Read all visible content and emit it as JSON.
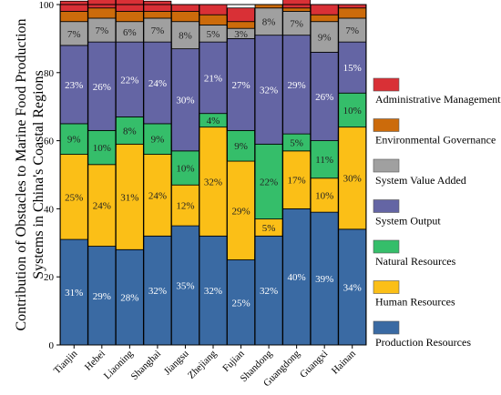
{
  "chart_data": {
    "type": "bar",
    "stacked": true,
    "ylabel": "Contribution of Obstacles to Marine Food Production Systems in China's Coastal Regions",
    "ylim": [
      0,
      100
    ],
    "yticks": [
      0,
      20,
      40,
      60,
      80,
      100
    ],
    "categories": [
      "Tianjin",
      "Hebei",
      "Liaoning",
      "Shanghai",
      "Jiangsu",
      "Zhejiang",
      "Fujian",
      "Shandong",
      "Guangdong",
      "Guangxi",
      "Hainan"
    ],
    "series": [
      {
        "name": "Production Resources",
        "color": "#3a6aa3",
        "values": [
          31,
          29,
          28,
          32,
          35,
          32,
          25,
          32,
          40,
          39,
          34
        ],
        "labels": [
          "31%",
          "29%",
          "28%",
          "32%",
          "35%",
          "32%",
          "25%",
          "32%",
          "40%",
          "39%",
          "34%"
        ]
      },
      {
        "name": "Human Resources",
        "color": "#fbbf17",
        "values": [
          25,
          24,
          31,
          24,
          12,
          32,
          29,
          5,
          17,
          10,
          30
        ],
        "labels": [
          "25%",
          "24%",
          "31%",
          "24%",
          "12%",
          "32%",
          "29%",
          "5%",
          "17%",
          "10%",
          "30%"
        ]
      },
      {
        "name": "Natural Resources",
        "color": "#35be6a",
        "values": [
          9,
          10,
          8,
          9,
          10,
          4,
          9,
          22,
          5,
          11,
          10
        ],
        "labels": [
          "9%",
          "10%",
          "8%",
          "9%",
          "10%",
          "4%",
          "9%",
          "22%",
          "5%",
          "11%",
          "10%"
        ]
      },
      {
        "name": "System Output",
        "color": "#6465a4",
        "values": [
          23,
          26,
          22,
          24,
          30,
          21,
          27,
          32,
          29,
          26,
          15
        ],
        "labels": [
          "23%",
          "26%",
          "22%",
          "24%",
          "30%",
          "21%",
          "27%",
          "32%",
          "29%",
          "26%",
          "15%"
        ]
      },
      {
        "name": "System Value Added",
        "color": "#a0a0a0",
        "values": [
          7,
          7,
          6,
          7,
          8,
          5,
          3,
          8,
          7,
          9,
          7
        ],
        "labels": [
          "7%",
          "7%",
          "6%",
          "7%",
          "8%",
          "5%",
          "3%",
          "8%",
          "7%",
          "9%",
          "7%"
        ]
      },
      {
        "name": "Environmental Governance",
        "color": "#cc6b0b",
        "values": [
          3,
          3,
          3,
          2,
          3,
          3,
          2,
          1,
          1,
          2,
          3
        ],
        "labels": [
          "",
          "",
          "",
          "",
          "",
          "",
          "",
          "",
          "",
          "",
          ""
        ]
      },
      {
        "name": "Administrative Management",
        "color": "#d93036",
        "values": [
          3,
          4,
          4,
          3,
          2,
          3,
          4,
          0,
          3,
          3,
          1
        ],
        "labels": [
          "",
          "",
          "",
          "",
          "",
          "",
          "",
          "",
          "",
          "",
          ""
        ]
      }
    ],
    "legend": "right",
    "legend_order": [
      "Administrative Management",
      "Environmental Governance",
      "System Value Added",
      "System Output",
      "Natural Resources",
      "Human Resources",
      "Production Resources"
    ],
    "grid": false
  }
}
